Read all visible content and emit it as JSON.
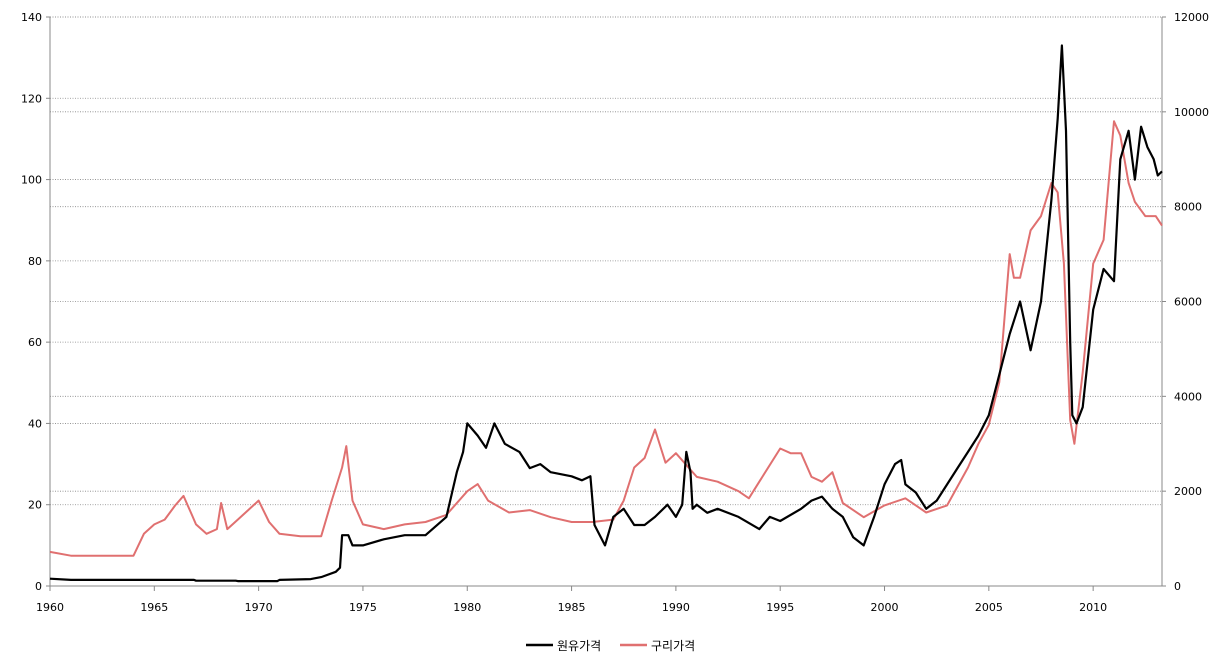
{
  "chart_data": {
    "type": "line",
    "title": "",
    "xlabel": "",
    "ylabel": "",
    "xlim": [
      1960,
      2013.3
    ],
    "ylim_left": [
      0,
      140
    ],
    "ylim_right": [
      0,
      12000
    ],
    "x_ticks": [
      1960,
      1965,
      1970,
      1975,
      1980,
      1985,
      1990,
      1995,
      2000,
      2005,
      2010
    ],
    "y_left_ticks": [
      0,
      20,
      40,
      60,
      80,
      100,
      120,
      140
    ],
    "y_right_ticks": [
      0,
      2000,
      4000,
      6000,
      8000,
      10000,
      12000
    ],
    "grid": "horizontal dotted",
    "legend_position": "bottom",
    "series": [
      {
        "name": "원유가격",
        "axis": "left",
        "color": "#000000",
        "x": [
          1960,
          1961,
          1966.9,
          1967,
          1968.9,
          1969,
          1970.9,
          1971,
          1972.5,
          1973,
          1973.7,
          1973.9,
          1974,
          1974.3,
          1974.5,
          1975,
          1976,
          1977,
          1978,
          1979,
          1979.5,
          1979.8,
          1980,
          1980.5,
          1980.9,
          1981.3,
          1981.8,
          1982.5,
          1983,
          1983.5,
          1984,
          1985,
          1985.5,
          1985.9,
          1986.1,
          1986.4,
          1986.6,
          1987,
          1987.5,
          1988,
          1988.5,
          1989,
          1989.6,
          1990,
          1990.3,
          1990.5,
          1990.7,
          1990.8,
          1991,
          1991.5,
          1992,
          1993,
          1994,
          1994.5,
          1995,
          1996,
          1996.5,
          1997,
          1997.5,
          1998,
          1998.5,
          1999,
          1999.5,
          2000,
          2000.5,
          2000.8,
          2001,
          2001.5,
          2002,
          2002.5,
          2003,
          2003.5,
          2004,
          2004.5,
          2005,
          2005.5,
          2006,
          2006.5,
          2007,
          2007.5,
          2008,
          2008.3,
          2008.5,
          2008.7,
          2008.9,
          2009,
          2009.2,
          2009.5,
          2010,
          2010.5,
          2011,
          2011.3,
          2011.7,
          2012,
          2012.3,
          2012.6,
          2012.9,
          2013.1,
          2013.3
        ],
        "y": [
          1.8,
          1.5,
          1.5,
          1.3,
          1.3,
          1.2,
          1.2,
          1.5,
          1.7,
          2.2,
          3.5,
          4.5,
          12.5,
          12.5,
          10,
          10,
          11.5,
          12.5,
          12.5,
          17,
          28,
          33,
          40,
          37,
          34,
          40,
          35,
          33,
          29,
          30,
          28,
          27,
          26,
          27,
          15,
          12,
          10,
          17,
          19,
          15,
          15,
          17,
          20,
          17,
          20,
          33,
          28,
          19,
          20,
          18,
          19,
          17,
          14,
          17,
          16,
          19,
          21,
          22,
          19,
          17,
          12,
          10,
          17,
          25,
          30,
          31,
          25,
          23,
          19,
          21,
          25,
          29,
          33,
          37,
          42,
          52,
          62,
          70,
          58,
          70,
          95,
          115,
          133,
          112,
          60,
          42,
          40,
          44,
          68,
          78,
          75,
          105,
          112,
          100,
          113,
          108,
          105,
          101,
          102
        ]
      },
      {
        "name": "구리가격",
        "axis": "right",
        "color": "#e07070",
        "x": [
          1960,
          1961,
          1964,
          1964.5,
          1965,
          1965.5,
          1966,
          1966.4,
          1966.8,
          1967,
          1967.5,
          1968,
          1968.2,
          1968.5,
          1969,
          1969.5,
          1970,
          1970.5,
          1971,
          1972,
          1973,
          1973.5,
          1974,
          1974.2,
          1974.5,
          1975,
          1976,
          1977,
          1978,
          1979,
          1980,
          1980.5,
          1981,
          1982,
          1983,
          1984,
          1985,
          1986,
          1987,
          1987.5,
          1988,
          1988.5,
          1989,
          1989.5,
          1990,
          1991,
          1992,
          1993,
          1993.5,
          1994,
          1995,
          1995.5,
          1996,
          1996.5,
          1997,
          1997.5,
          1998,
          1999,
          2000,
          2001,
          2002,
          2003,
          2004,
          2004.5,
          2005,
          2005.5,
          2006,
          2006.2,
          2006.5,
          2007,
          2007.5,
          2008,
          2008.3,
          2008.6,
          2008.9,
          2009.1,
          2009.5,
          2010,
          2010.5,
          2011,
          2011.3,
          2011.7,
          2012,
          2012.5,
          2013,
          2013.3
        ],
        "y": [
          720,
          640,
          640,
          1100,
          1300,
          1400,
          1700,
          1900,
          1500,
          1300,
          1100,
          1200,
          1750,
          1200,
          1400,
          1600,
          1800,
          1350,
          1100,
          1050,
          1050,
          1800,
          2500,
          2950,
          1800,
          1300,
          1200,
          1300,
          1350,
          1500,
          2000,
          2150,
          1800,
          1550,
          1600,
          1450,
          1350,
          1350,
          1400,
          1800,
          2500,
          2700,
          3300,
          2600,
          2800,
          2300,
          2200,
          2000,
          1850,
          2200,
          2900,
          2800,
          2800,
          2300,
          2200,
          2400,
          1750,
          1450,
          1700,
          1850,
          1550,
          1700,
          2500,
          3000,
          3400,
          4300,
          7000,
          6500,
          6500,
          7500,
          7800,
          8500,
          8300,
          6800,
          3500,
          3000,
          4500,
          6800,
          7300,
          9800,
          9500,
          8500,
          8100,
          7800,
          7800,
          7600
        ]
      }
    ]
  }
}
